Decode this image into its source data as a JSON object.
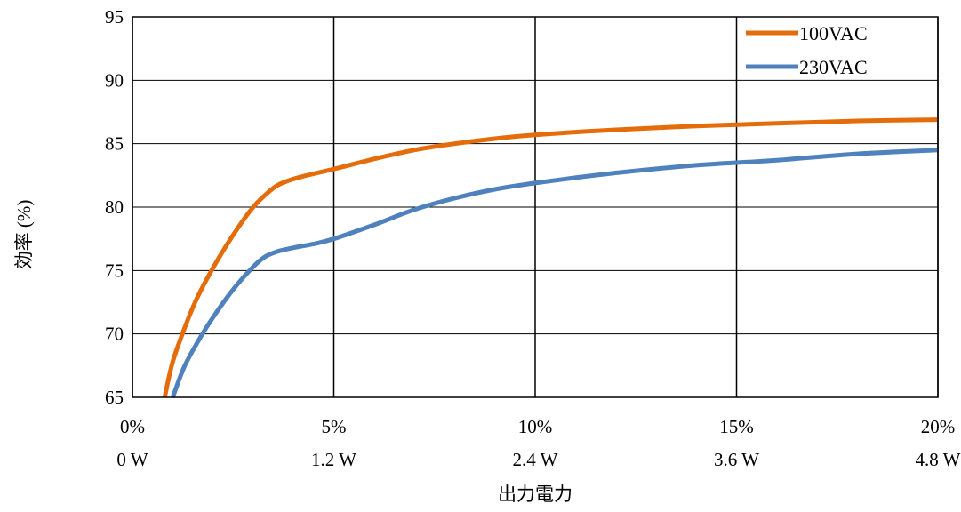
{
  "chart_data": {
    "type": "line",
    "title": "",
    "xlabel": "出力電力",
    "ylabel": "効率 (%)",
    "xlim": [
      0,
      20
    ],
    "ylim": [
      65,
      95
    ],
    "grid": true,
    "legend_position": "top-right",
    "yticks": [
      "65",
      "70",
      "75",
      "80",
      "85",
      "90",
      "95"
    ],
    "xticks_percent": [
      "0%",
      "5%",
      "10%",
      "15%",
      "20%"
    ],
    "xticks_watts": [
      "0 W",
      "1.2 W",
      "2.4 W",
      "3.6 W",
      "4.8 W"
    ],
    "series": [
      {
        "name": "100VAC",
        "color": "#E46C0A",
        "x": [
          0.8,
          1.0,
          1.3,
          1.6,
          2.0,
          2.5,
          3.0,
          3.5,
          3.8,
          4.2,
          5.0,
          6.0,
          7.0,
          8.0,
          9.0,
          10.0,
          12.0,
          14.0,
          16.0,
          18.0,
          20.0
        ],
        "y": [
          65.0,
          67.8,
          70.5,
          72.8,
          75.2,
          77.8,
          80.0,
          81.5,
          82.0,
          82.4,
          83.0,
          83.8,
          84.5,
          85.0,
          85.4,
          85.7,
          86.1,
          86.4,
          86.6,
          86.8,
          86.9
        ]
      },
      {
        "name": "230VAC",
        "color": "#4F81BD",
        "x": [
          1.0,
          1.3,
          1.7,
          2.0,
          2.5,
          3.0,
          3.3,
          3.6,
          4.0,
          4.5,
          5.0,
          6.0,
          7.0,
          8.0,
          9.0,
          10.0,
          12.0,
          14.0,
          16.0,
          18.0,
          20.0
        ],
        "y": [
          65.0,
          67.5,
          69.8,
          71.3,
          73.5,
          75.3,
          76.1,
          76.5,
          76.8,
          77.1,
          77.5,
          78.6,
          79.8,
          80.7,
          81.4,
          81.9,
          82.7,
          83.3,
          83.7,
          84.2,
          84.5
        ]
      }
    ]
  }
}
